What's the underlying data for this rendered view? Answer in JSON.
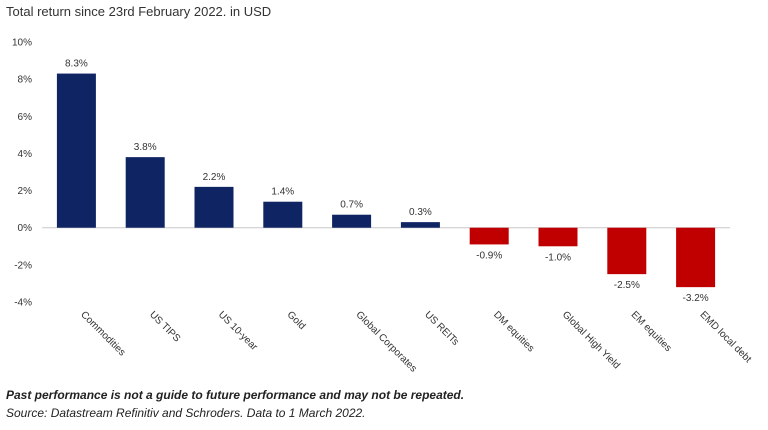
{
  "chart_data": {
    "type": "bar",
    "title": "Total return since 23rd February 2022. in USD",
    "categories": [
      "Commodities",
      "US TIPS",
      "US 10-year",
      "Gold",
      "Global Corporates",
      "US REITs",
      "DM equities",
      "Global High Yield",
      "EM equities",
      "EMD local debt"
    ],
    "values": [
      8.3,
      3.8,
      2.2,
      1.4,
      0.7,
      0.3,
      -0.9,
      -1.0,
      -2.5,
      -3.2
    ],
    "data_labels": [
      "8.3%",
      "3.8%",
      "2.2%",
      "1.4%",
      "0.7%",
      "0.3%",
      "-0.9%",
      "-1.0%",
      "-2.5%",
      "-3.2%"
    ],
    "y_ticks": [
      10,
      8,
      6,
      4,
      2,
      0,
      -2,
      -4
    ],
    "y_tick_labels": [
      "10%",
      "8%",
      "6%",
      "4%",
      "2%",
      "0%",
      "-2%",
      "-4%"
    ],
    "ylim": [
      -4,
      10
    ],
    "xlabel": "",
    "ylabel": "",
    "grid": false,
    "legend": "none",
    "colors": {
      "positive": "#0f2462",
      "negative": "#c00000",
      "axis": "#c8c8c8"
    }
  },
  "footnotes": {
    "disclaimer": "Past performance is not a guide to future performance and may not be repeated.",
    "source": "Source: Datastream Refinitiv and Schroders. Data to 1 March 2022."
  }
}
